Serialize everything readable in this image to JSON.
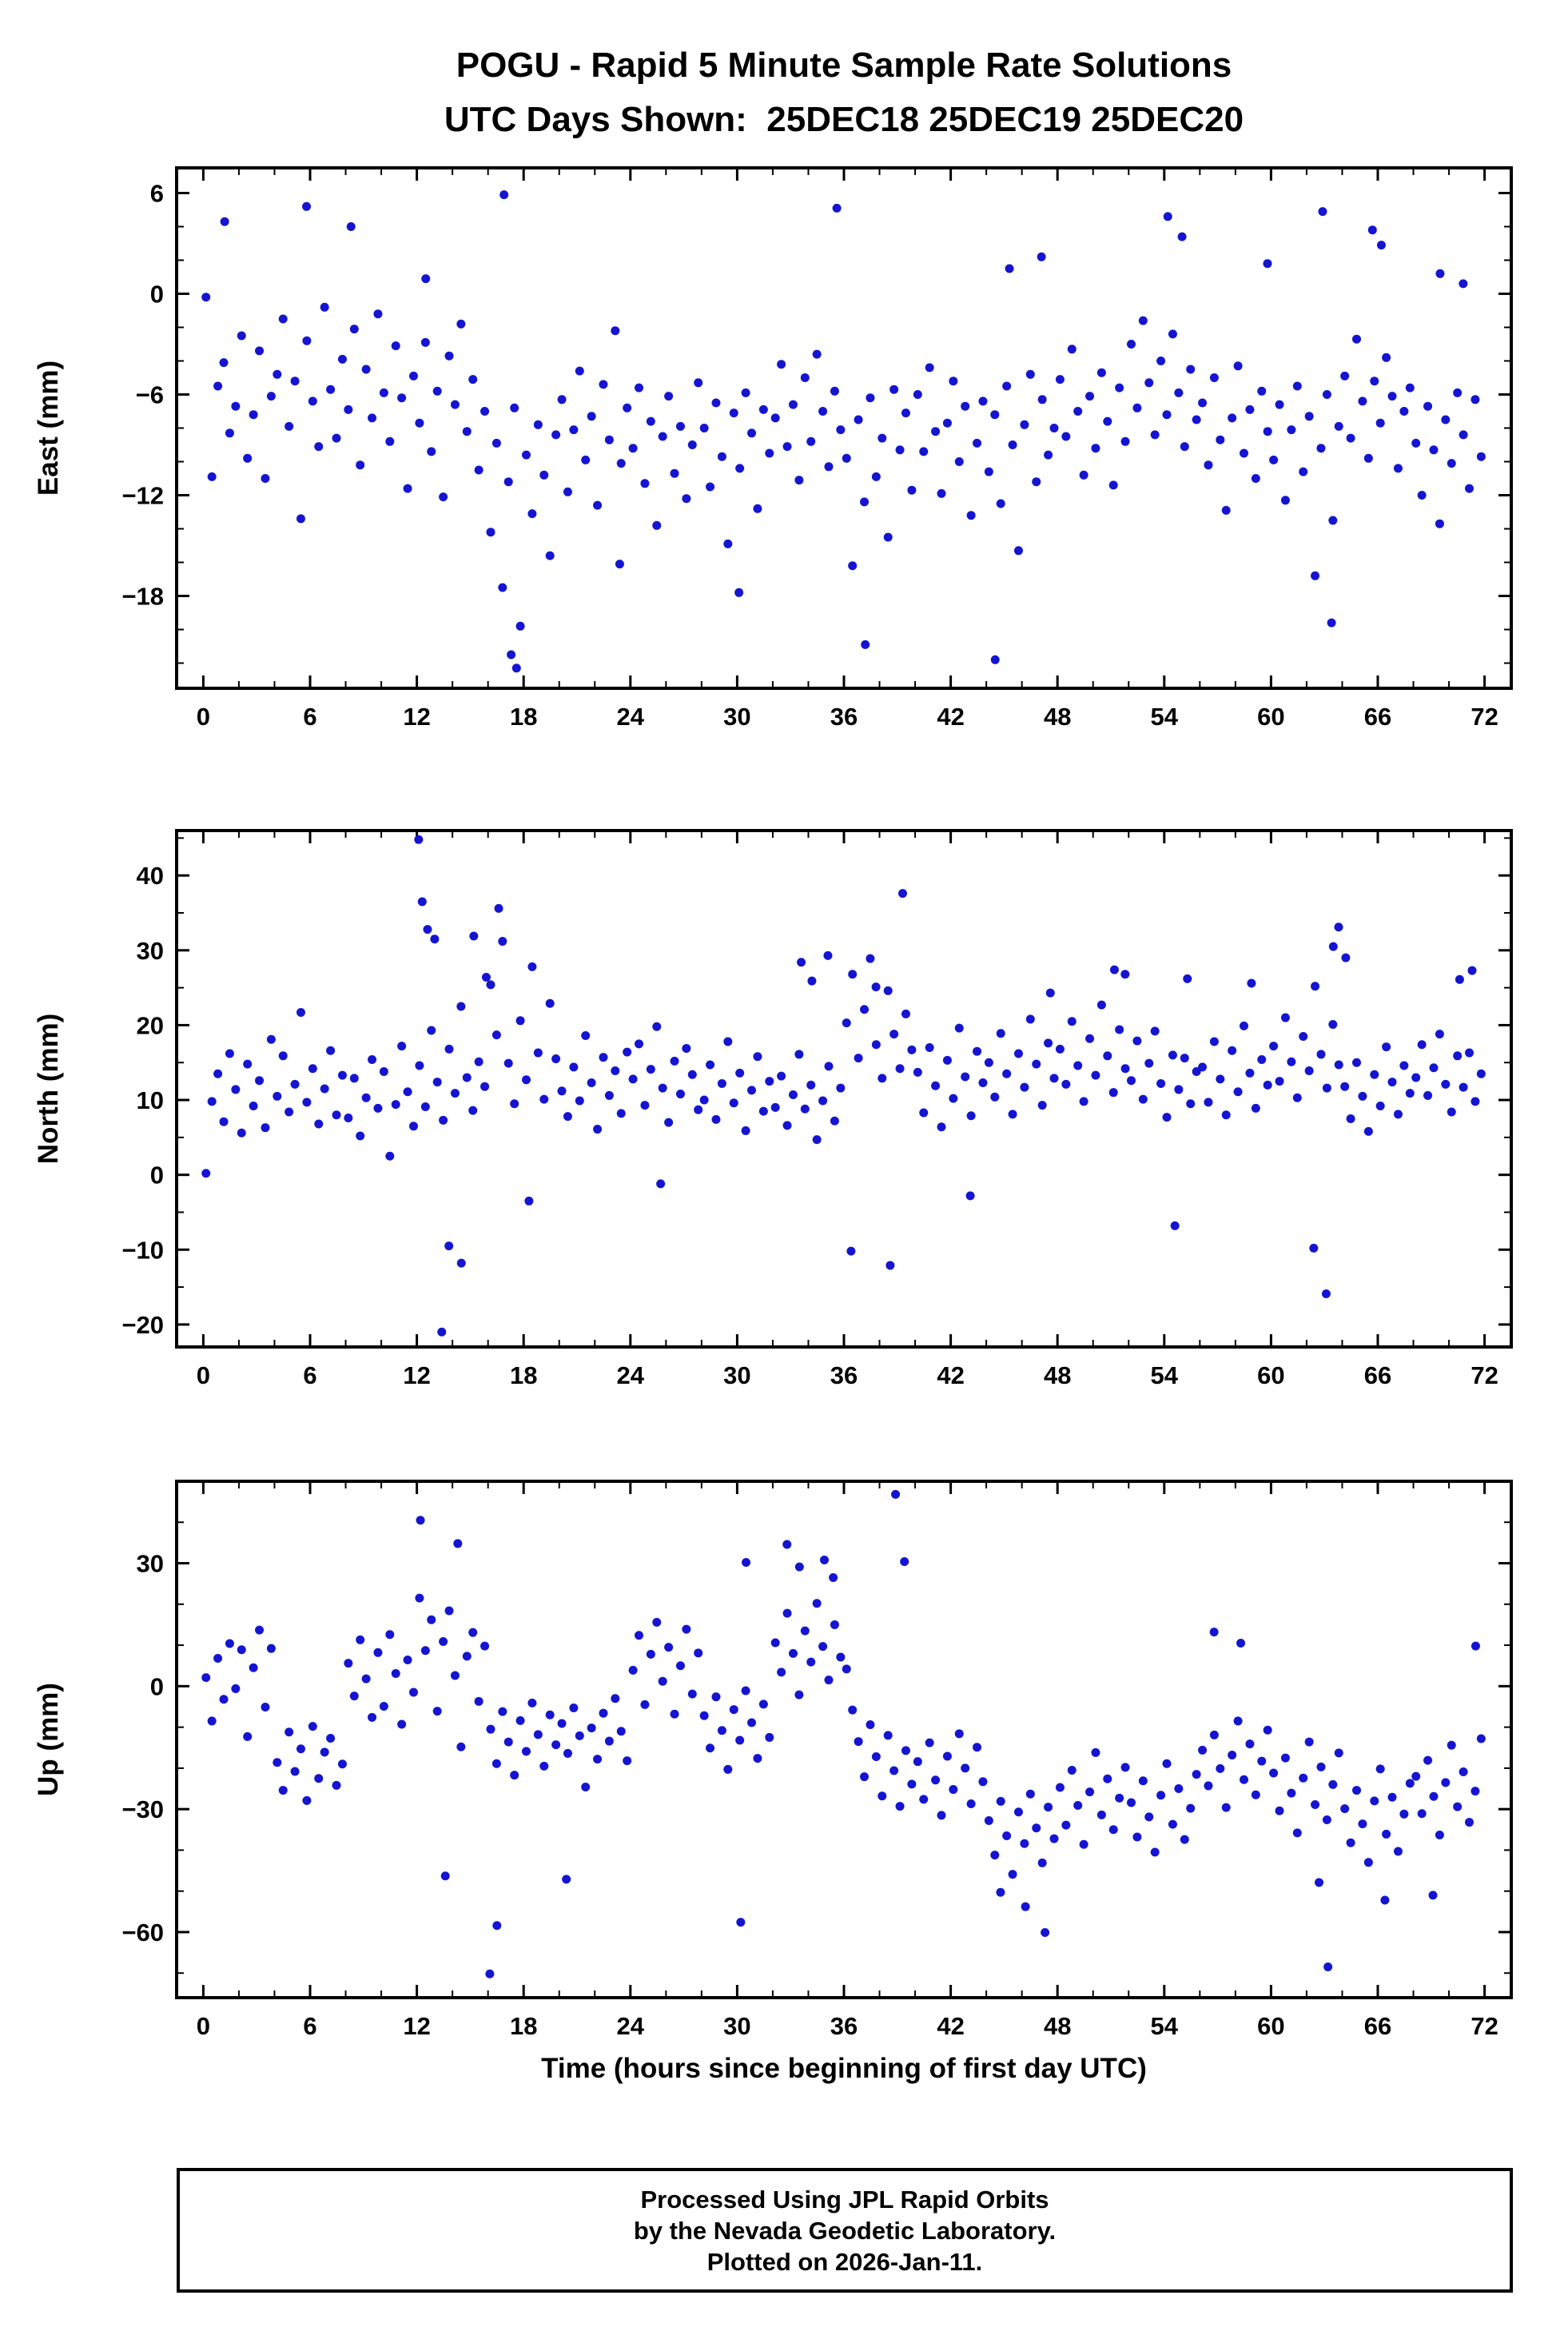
{
  "title": "POGU - Rapid 5 Minute Sample Rate Solutions",
  "subtitle": "UTC Days Shown:  25DEC18 25DEC19 25DEC20",
  "xlabel": "Time (hours since beginning of first day UTC)",
  "footer": {
    "line1": "Processed Using JPL Rapid Orbits",
    "line2": "by the Nevada Geodetic Laboratory.",
    "line3": "Plotted on 2026-Jan-11."
  },
  "colors": {
    "dot": "#1414d2",
    "frame": "#000000"
  },
  "chart_data": [
    {
      "type": "scatter",
      "name": "east",
      "ylabel": "East (mm)",
      "ylim": [
        -23.5,
        7.5
      ],
      "yticks": [
        6,
        0,
        -6,
        -12,
        -18
      ],
      "y_minor": 2,
      "xlim": [
        -1.5,
        73.5
      ],
      "x_tick_step": 6,
      "x_minor": 2,
      "x_start": 0.15,
      "x_step": 0.3333,
      "y": [
        -0.2,
        -10.9,
        -5.5,
        -4.1,
        -8.3,
        -6.7,
        -2.5,
        -9.8,
        -7.2,
        -3.4,
        -11.0,
        -6.1,
        -4.8,
        -1.5,
        -7.9,
        -5.2,
        -13.4,
        -2.8,
        -6.4,
        -9.1,
        -0.8,
        -5.7,
        -8.6,
        -3.9,
        -6.9,
        -2.1,
        -10.2,
        -4.5,
        -7.4,
        -1.2,
        -5.9,
        -8.8,
        -3.1,
        -6.2,
        -11.6,
        -4.9,
        -7.7,
        -2.9,
        -9.4,
        -5.8,
        -12.1,
        -3.7,
        -6.6,
        -1.8,
        -8.2,
        -5.1,
        -10.5,
        -7.0,
        -14.2,
        -8.9,
        -17.5,
        -11.2,
        -6.8,
        -19.8,
        -9.6,
        -13.1,
        -7.8,
        -10.8,
        -15.6,
        -8.4,
        -6.3,
        -11.8,
        -8.1,
        -4.6,
        -9.9,
        -7.3,
        -12.6,
        -5.4,
        -8.7,
        -2.2,
        -10.1,
        -6.8,
        -9.2,
        -5.6,
        -11.3,
        -7.6,
        -13.8,
        -8.5,
        -6.1,
        -10.7,
        -7.9,
        -12.2,
        -9.0,
        -5.3,
        -8.0,
        -11.5,
        -6.5,
        -9.7,
        -14.9,
        -7.1,
        -10.4,
        -5.9,
        -8.3,
        -12.8,
        -6.9,
        -9.5,
        -7.4,
        -4.2,
        -9.1,
        -6.6,
        -11.1,
        -5.0,
        -8.8,
        -3.6,
        -7.0,
        -10.3,
        -5.8,
        -8.1,
        -9.8,
        -16.2,
        -7.5,
        -12.4,
        -6.2,
        -10.9,
        -8.6,
        -14.5,
        -5.7,
        -9.3,
        -7.1,
        -11.7,
        -6.0,
        -9.4,
        -4.4,
        -8.2,
        -11.9,
        -7.7,
        -5.2,
        -10.0,
        -6.7,
        -13.2,
        -8.9,
        -6.4,
        -10.6,
        -7.2,
        -12.5,
        -5.5,
        -9.0,
        -15.3,
        -7.8,
        -4.8,
        -11.2,
        -6.3,
        -9.6,
        -8.0,
        -5.1,
        -8.5,
        -3.3,
        -7.0,
        -10.8,
        -6.1,
        -9.2,
        -4.7,
        -7.6,
        -11.4,
        -5.6,
        -8.8,
        -3.0,
        -6.8,
        -1.6,
        -5.3,
        -8.4,
        -4.0,
        -7.2,
        -2.4,
        -5.9,
        -9.1,
        -4.5,
        -7.5,
        -6.5,
        -10.2,
        -5.0,
        -8.7,
        -12.9,
        -7.4,
        -4.3,
        -9.5,
        -6.9,
        -11.0,
        -5.8,
        -8.2,
        -9.9,
        -6.6,
        -12.3,
        -8.1,
        -5.5,
        -10.6,
        -7.3,
        -16.8,
        -9.2,
        -6.0,
        -13.5,
        -7.9,
        -4.9,
        -8.6,
        -2.7,
        -6.4,
        -9.8,
        -5.2,
        -7.7,
        -3.8,
        -6.1,
        -10.4,
        -7.0,
        -5.6,
        -8.9,
        -12.0,
        -6.7,
        -9.3,
        -13.7,
        -7.5,
        -10.1,
        -5.9,
        -8.4,
        -11.6,
        -6.3,
        -9.7
      ],
      "outliers": [
        [
          1.2,
          4.3
        ],
        [
          5.8,
          5.2
        ],
        [
          8.3,
          4.0
        ],
        [
          12.5,
          0.9
        ],
        [
          16.9,
          5.9
        ],
        [
          17.3,
          -21.5
        ],
        [
          17.6,
          -22.3
        ],
        [
          23.4,
          -16.1
        ],
        [
          30.1,
          -17.8
        ],
        [
          35.6,
          5.1
        ],
        [
          37.2,
          -20.9
        ],
        [
          44.5,
          -21.8
        ],
        [
          45.3,
          1.5
        ],
        [
          47.1,
          2.2
        ],
        [
          54.2,
          4.6
        ],
        [
          55.0,
          3.4
        ],
        [
          59.8,
          1.8
        ],
        [
          62.9,
          4.9
        ],
        [
          63.4,
          -19.6
        ],
        [
          65.7,
          3.8
        ],
        [
          66.2,
          2.9
        ],
        [
          69.5,
          1.2
        ],
        [
          70.8,
          0.6
        ]
      ]
    },
    {
      "type": "scatter",
      "name": "north",
      "ylabel": "North (mm)",
      "ylim": [
        -23,
        46
      ],
      "yticks": [
        40,
        30,
        20,
        10,
        0,
        -10,
        -20
      ],
      "y_minor": 5,
      "xlim": [
        -1.5,
        73.5
      ],
      "x_tick_step": 6,
      "x_minor": 2,
      "x_start": 0.15,
      "x_step": 0.3333,
      "y": [
        0.2,
        9.8,
        13.5,
        7.1,
        16.2,
        11.4,
        5.6,
        14.8,
        9.2,
        12.6,
        6.3,
        18.1,
        10.5,
        15.9,
        8.4,
        12.1,
        21.7,
        9.7,
        14.2,
        6.8,
        11.5,
        16.6,
        8.0,
        13.3,
        7.6,
        12.9,
        5.2,
        10.3,
        15.4,
        8.9,
        13.8,
        2.5,
        9.4,
        17.2,
        11.1,
        6.5,
        14.6,
        9.1,
        19.3,
        12.4,
        7.3,
        16.8,
        10.9,
        22.5,
        13.0,
        8.6,
        15.1,
        11.8,
        25.4,
        18.7,
        31.2,
        14.9,
        9.5,
        20.6,
        12.7,
        27.8,
        16.3,
        10.1,
        22.9,
        15.5,
        11.2,
        7.8,
        14.4,
        9.9,
        18.6,
        12.3,
        6.1,
        15.7,
        10.6,
        13.9,
        8.2,
        16.4,
        12.8,
        17.5,
        9.3,
        14.1,
        19.8,
        11.6,
        7.0,
        15.2,
        10.8,
        16.9,
        13.4,
        8.7,
        10.0,
        14.7,
        7.4,
        12.2,
        17.8,
        9.6,
        13.6,
        5.9,
        11.3,
        15.8,
        8.5,
        12.5,
        9.0,
        13.2,
        6.6,
        10.7,
        16.1,
        8.8,
        12.0,
        4.7,
        9.9,
        14.5,
        7.2,
        11.6,
        20.3,
        26.8,
        15.6,
        22.1,
        28.9,
        17.4,
        12.9,
        24.6,
        18.8,
        14.2,
        21.5,
        16.7,
        13.7,
        8.3,
        17.0,
        11.9,
        6.4,
        15.3,
        10.2,
        19.6,
        13.1,
        7.9,
        16.5,
        12.3,
        15.0,
        10.4,
        18.9,
        13.5,
        8.1,
        16.2,
        11.7,
        20.8,
        14.8,
        9.3,
        17.6,
        12.9,
        16.8,
        12.1,
        20.5,
        14.6,
        9.8,
        18.2,
        13.3,
        22.7,
        15.9,
        11.0,
        19.4,
        14.2,
        12.6,
        17.9,
        10.1,
        14.9,
        19.2,
        12.2,
        7.7,
        16.0,
        11.4,
        15.6,
        9.5,
        13.8,
        14.4,
        9.7,
        17.8,
        12.8,
        8.0,
        16.6,
        11.1,
        19.9,
        13.6,
        8.9,
        15.4,
        12.0,
        17.2,
        12.5,
        21.0,
        15.1,
        10.3,
        18.5,
        13.9,
        25.2,
        16.1,
        11.6,
        20.1,
        14.7,
        11.8,
        7.5,
        15.0,
        10.5,
        5.8,
        13.4,
        9.2,
        17.1,
        12.4,
        8.1,
        14.6,
        10.9,
        13.0,
        17.4,
        10.6,
        14.3,
        18.8,
        12.1,
        8.4,
        15.9,
        11.7,
        16.3,
        9.8,
        13.5
      ],
      "outliers": [
        [
          12.1,
          44.8
        ],
        [
          12.3,
          36.5
        ],
        [
          12.6,
          32.8
        ],
        [
          13.0,
          31.5
        ],
        [
          13.4,
          -21.0
        ],
        [
          13.8,
          -9.5
        ],
        [
          15.2,
          31.9
        ],
        [
          15.9,
          26.4
        ],
        [
          16.6,
          35.6
        ],
        [
          14.5,
          -11.8
        ],
        [
          18.3,
          -3.5
        ],
        [
          25.7,
          -1.2
        ],
        [
          33.6,
          28.4
        ],
        [
          34.2,
          25.9
        ],
        [
          35.1,
          29.3
        ],
        [
          36.4,
          -10.2
        ],
        [
          37.8,
          25.1
        ],
        [
          38.6,
          -12.1
        ],
        [
          39.3,
          37.6
        ],
        [
          43.1,
          -2.8
        ],
        [
          47.6,
          24.3
        ],
        [
          51.2,
          27.4
        ],
        [
          51.8,
          26.8
        ],
        [
          54.6,
          -6.8
        ],
        [
          55.3,
          26.2
        ],
        [
          58.9,
          25.6
        ],
        [
          62.4,
          -9.8
        ],
        [
          63.1,
          -15.9
        ],
        [
          63.5,
          30.5
        ],
        [
          63.8,
          33.1
        ],
        [
          64.2,
          29.0
        ],
        [
          70.6,
          26.1
        ],
        [
          71.3,
          27.3
        ]
      ]
    },
    {
      "type": "scatter",
      "name": "up",
      "ylabel": "Up (mm)",
      "ylim": [
        -76,
        50
      ],
      "yticks": [
        30,
        0,
        -30,
        -60
      ],
      "y_minor": 10,
      "xlim": [
        -1.5,
        73.5
      ],
      "x_tick_step": 6,
      "x_minor": 2,
      "x_start": 0.15,
      "x_step": 0.3333,
      "y": [
        2.1,
        -8.5,
        6.8,
        -3.2,
        10.4,
        -0.6,
        8.9,
        -12.3,
        4.5,
        13.7,
        -5.1,
        9.2,
        -18.6,
        -25.4,
        -11.2,
        -20.8,
        -15.3,
        -27.9,
        -9.8,
        -22.5,
        -16.1,
        -12.7,
        -24.2,
        -19.0,
        5.6,
        -2.4,
        11.3,
        1.8,
        -7.6,
        8.2,
        -4.9,
        12.6,
        3.1,
        -9.3,
        6.4,
        -1.5,
        21.5,
        8.7,
        16.2,
        -6.1,
        10.9,
        18.4,
        2.6,
        -14.8,
        7.3,
        13.1,
        -3.7,
        9.8,
        -10.5,
        -18.9,
        -6.2,
        -13.6,
        -21.7,
        -8.4,
        -15.9,
        -4.1,
        -11.8,
        -19.5,
        -7.0,
        -14.3,
        -9.1,
        -16.4,
        -5.3,
        -12.1,
        -24.6,
        -10.2,
        -17.8,
        -6.6,
        -13.4,
        -3.0,
        -11.0,
        -18.2,
        3.9,
        12.4,
        -4.5,
        7.8,
        15.6,
        1.2,
        9.5,
        -6.8,
        5.0,
        13.9,
        -1.9,
        8.1,
        -7.2,
        -15.1,
        -2.6,
        -10.8,
        -20.3,
        -5.7,
        -13.2,
        -1.1,
        -8.9,
        -17.6,
        -4.4,
        -12.5,
        10.6,
        3.4,
        17.8,
        8.0,
        -2.1,
        13.5,
        5.9,
        20.2,
        9.7,
        1.5,
        15.0,
        7.1,
        4.2,
        -5.8,
        -13.5,
        -22.1,
        -9.4,
        -17.2,
        -26.8,
        -12.0,
        -20.6,
        -29.3,
        -15.7,
        -23.9,
        -18.4,
        -27.6,
        -13.8,
        -22.9,
        -31.5,
        -17.1,
        -25.2,
        -11.6,
        -20.0,
        -28.7,
        -14.9,
        -23.3,
        -32.8,
        -41.2,
        -28.1,
        -36.5,
        -45.9,
        -30.7,
        -38.4,
        -26.3,
        -34.6,
        -43.1,
        -29.5,
        -37.2,
        -24.7,
        -33.9,
        -20.5,
        -29.1,
        -38.6,
        -25.8,
        -16.2,
        -31.4,
        -22.6,
        -35.0,
        -27.3,
        -19.8,
        -28.4,
        -36.8,
        -23.1,
        -31.9,
        -40.5,
        -26.6,
        -18.9,
        -33.7,
        -25.0,
        -37.4,
        -29.8,
        -21.5,
        -15.6,
        -24.3,
        -11.9,
        -20.1,
        -29.6,
        -16.8,
        -8.5,
        -22.8,
        -14.1,
        -26.5,
        -18.3,
        -10.7,
        -21.2,
        -30.4,
        -17.5,
        -26.1,
        -35.8,
        -22.4,
        -13.6,
        -28.9,
        -19.7,
        -32.6,
        -24.0,
        -16.3,
        -29.9,
        -38.2,
        -25.4,
        -33.6,
        -43.0,
        -28.0,
        -20.2,
        -36.1,
        -27.1,
        -40.3,
        -31.2,
        -23.7,
        -22.0,
        -31.1,
        -18.1,
        -26.9,
        -36.3,
        -23.5,
        -14.4,
        -29.4,
        -20.9,
        -33.2,
        -25.6,
        -12.8
      ],
      "outliers": [
        [
          12.2,
          40.5
        ],
        [
          14.3,
          34.8
        ],
        [
          16.1,
          -70.2
        ],
        [
          16.5,
          -58.4
        ],
        [
          13.6,
          -46.3
        ],
        [
          20.4,
          -47.1
        ],
        [
          30.5,
          30.2
        ],
        [
          32.8,
          34.6
        ],
        [
          33.5,
          29.1
        ],
        [
          34.9,
          30.8
        ],
        [
          35.4,
          26.5
        ],
        [
          38.9,
          46.8
        ],
        [
          39.4,
          30.4
        ],
        [
          30.2,
          -57.6
        ],
        [
          44.8,
          -50.3
        ],
        [
          46.2,
          -53.8
        ],
        [
          47.3,
          -60.1
        ],
        [
          56.8,
          13.2
        ],
        [
          58.3,
          10.5
        ],
        [
          63.2,
          -68.5
        ],
        [
          62.7,
          -47.9
        ],
        [
          66.4,
          -52.2
        ],
        [
          69.1,
          -51.0
        ],
        [
          71.5,
          9.8
        ]
      ]
    }
  ]
}
